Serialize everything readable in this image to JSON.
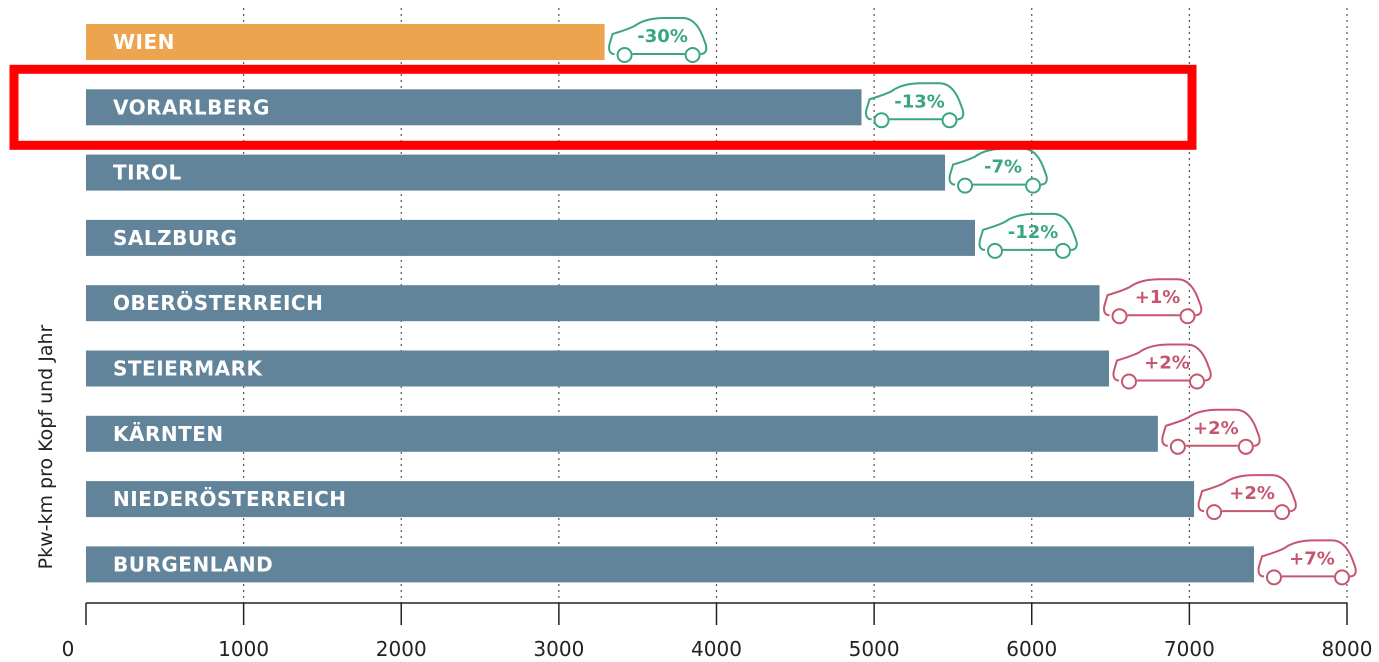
{
  "chart_data": {
    "type": "bar",
    "orientation": "horizontal",
    "categories": [
      "WIEN",
      "VORARLBERG",
      "TIROL",
      "SALZBURG",
      "OBERÖSTERREICH",
      "STEIERMARK",
      "KÄRNTEN",
      "NIEDERÖSTERREICH",
      "BURGENLAND"
    ],
    "values": [
      3290,
      4920,
      5450,
      5640,
      6430,
      6490,
      6800,
      7030,
      7410
    ],
    "changes": [
      "-30%",
      "-13%",
      "-7%",
      "-12%",
      "+1%",
      "+2%",
      "+2%",
      "+2%",
      "+7%"
    ],
    "highlighted_category": "VORARLBERG",
    "xlim": [
      0,
      8000
    ],
    "xticks": [
      0,
      1000,
      2000,
      3000,
      4000,
      5000,
      6000,
      7000,
      8000
    ],
    "ylabel": "Pkw-km pro Kopf und Jahr",
    "grid": "vertical dotted",
    "colors": {
      "bar_default": "#61849a",
      "bar_wien": "#eca44f",
      "decrease": "#3aa581",
      "increase": "#c6566f",
      "highlight_box": "#ff0000"
    }
  }
}
